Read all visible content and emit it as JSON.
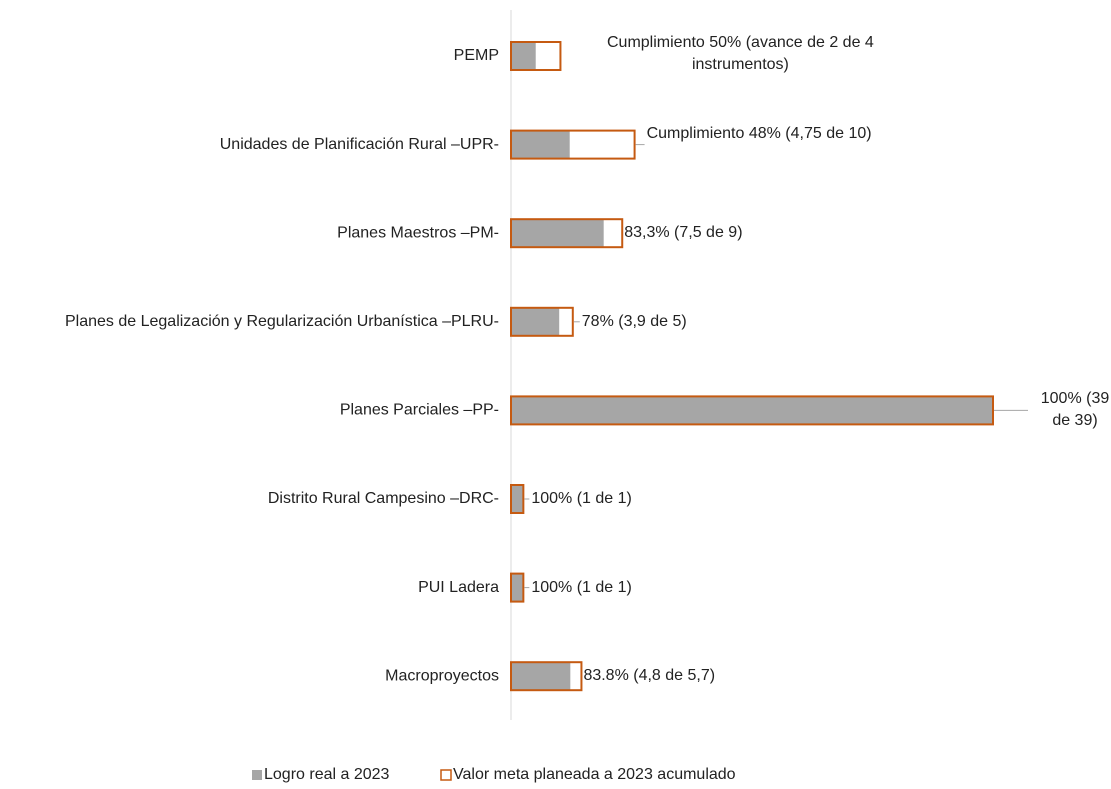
{
  "chart_data": {
    "type": "bar_overlap",
    "categories": [
      "PEMP",
      "Unidades de Planificación Rural –UPR-",
      "Planes Maestros –PM-",
      "Planes de Legalización y Regularización Urbanística –PLRU-",
      "Planes Parciales –PP-",
      "Distrito Rural Campesino –DRC-",
      "PUI Ladera",
      "Macroproyectos"
    ],
    "series": [
      {
        "name": "Logro real a 2023",
        "color": "#a6a6a6",
        "values": [
          2,
          4.75,
          7.5,
          3.9,
          39,
          1,
          1,
          4.8
        ]
      },
      {
        "name": "Valor meta planeada a 2023 acumulado",
        "color": "#c55a11",
        "values": [
          4,
          10,
          9,
          5,
          39,
          1,
          1,
          5.7
        ]
      }
    ],
    "annotations": [
      "Cumplimiento 50% (avance de 2 de 4 instrumentos)",
      "Cumplimiento 48% (4,75 de 10)",
      "83,3% (7,5 de 9)",
      "78% (3,9 de 5)",
      "100% (39 de 39)",
      "100% (1 de 1)",
      "100% (1 de 1)",
      "83.8% (4,8 de 5,7)"
    ],
    "legend": "bottom"
  }
}
